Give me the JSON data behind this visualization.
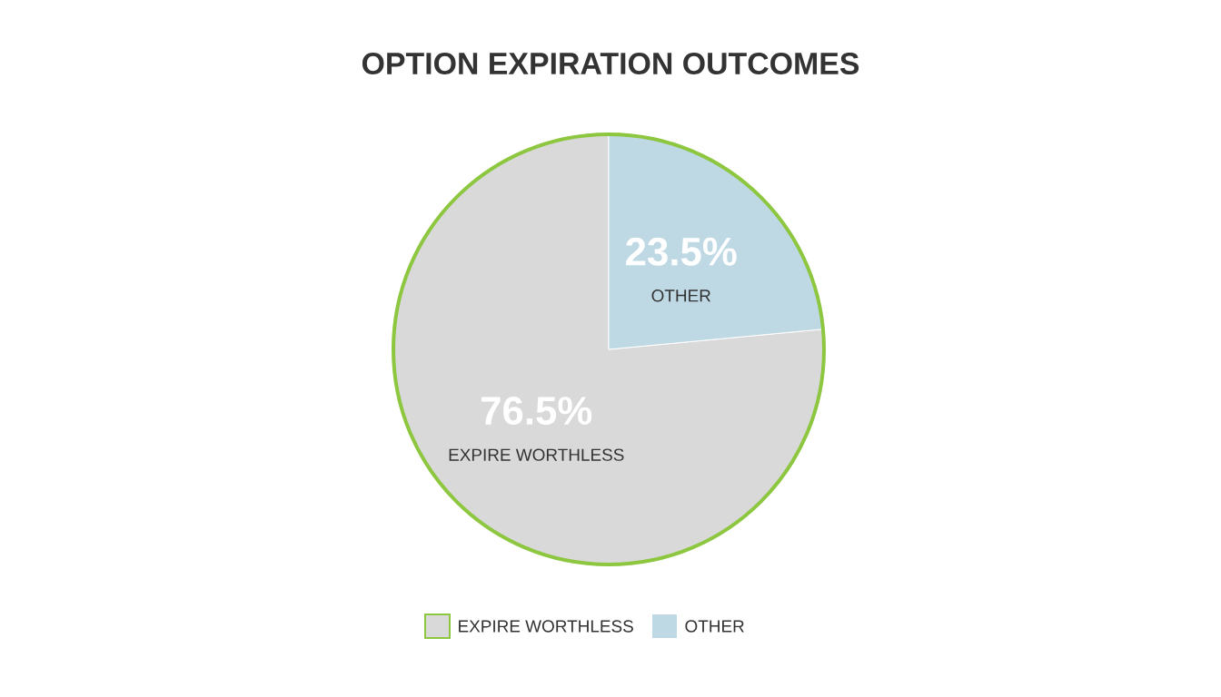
{
  "chart_data": {
    "type": "pie",
    "title": "OPTION EXPIRATION OUTCOMES",
    "categories": [
      "EXPIRE WORTHLESS",
      "OTHER"
    ],
    "values": [
      76.5,
      23.5
    ],
    "value_labels": [
      "76.5%",
      "23.5%"
    ],
    "colors": [
      "#d9d9d9",
      "#bed8e4"
    ],
    "legend": "bottom"
  }
}
